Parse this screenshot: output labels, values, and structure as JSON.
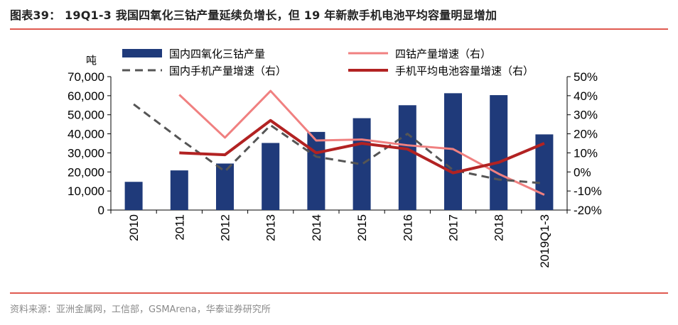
{
  "header": {
    "title": "图表39： 19Q1-3 我国四氧化三钴产量延续负增长，但 19 年新款手机电池平均容量明显增加"
  },
  "footer": {
    "source": "资料来源：亚洲金属网，工信部，GSMArena，华泰证券研究所"
  },
  "colors": {
    "bar": "#1f3a7a",
    "cobalt_growth": "#f08080",
    "phone_growth": "#555555",
    "battery_growth": "#b22222",
    "rule": "#e05a50"
  },
  "chart_data": {
    "type": "bar",
    "y_unit_label": "吨",
    "categories": [
      "2010",
      "2011",
      "2012",
      "2013",
      "2014",
      "2015",
      "2016",
      "2017",
      "2018",
      "2019Q1-3"
    ],
    "ylim": [
      0,
      70000
    ],
    "yticks": [
      "0",
      "10,000",
      "20,000",
      "30,000",
      "40,000",
      "50,000",
      "60,000",
      "70,000"
    ],
    "y2lim": [
      -20,
      50
    ],
    "y2ticks": [
      "-20%",
      "-10%",
      "0%",
      "10%",
      "20%",
      "30%",
      "40%",
      "50%"
    ],
    "series": [
      {
        "name": "国内四氧化三钴产量",
        "kind": "bar",
        "axis": "left",
        "values": [
          14800,
          20800,
          24400,
          35200,
          41000,
          48200,
          55000,
          61300,
          60300,
          39700
        ]
      },
      {
        "name": "四钴产量增速（右）",
        "kind": "line",
        "axis": "right",
        "style": "solid",
        "values": [
          null,
          40.5,
          18,
          42.5,
          16.5,
          17,
          14,
          12,
          -1,
          -12
        ]
      },
      {
        "name": "国内手机产量增速（右）",
        "kind": "line",
        "axis": "right",
        "style": "dashed",
        "values": [
          35.5,
          17.5,
          0.3,
          24.5,
          8,
          4,
          20,
          1,
          -4,
          -6
        ]
      },
      {
        "name": "手机平均电池容量增速（右）",
        "kind": "line",
        "axis": "right",
        "style": "solid",
        "values": [
          null,
          10,
          9,
          27,
          10,
          15,
          12,
          -0.5,
          5,
          15
        ]
      }
    ],
    "grid": false,
    "legend": "top"
  }
}
